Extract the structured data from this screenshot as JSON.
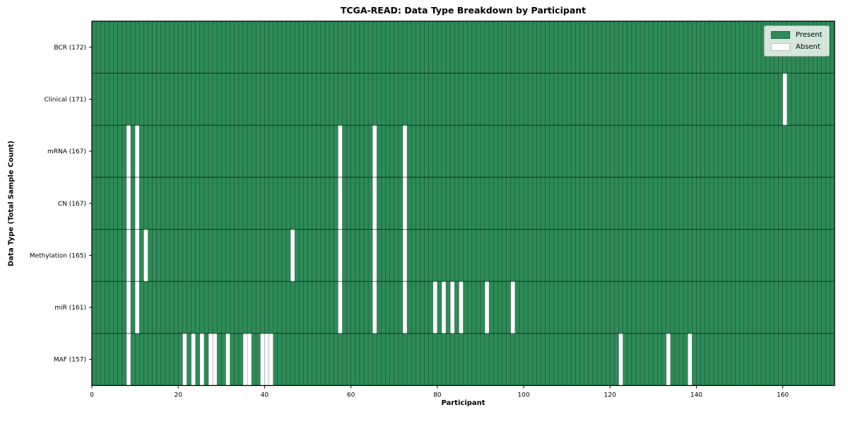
{
  "chart_data": {
    "type": "heatmap",
    "title": "TCGA-READ: Data Type Breakdown by Participant",
    "xlabel": "Participant",
    "ylabel": "Data Type (Total Sample Count)",
    "x_ticks": [
      0,
      20,
      40,
      60,
      80,
      100,
      120,
      140,
      160
    ],
    "x_range": [
      0,
      172
    ],
    "n_participants": 172,
    "grid": true,
    "legend_position": "upper right",
    "rows": [
      {
        "label": "BCR (172)",
        "total_samples": 172,
        "absent_participants": []
      },
      {
        "label": "Clinical (171)",
        "total_samples": 171,
        "absent_participants": [
          160
        ]
      },
      {
        "label": "mRNA (167)",
        "total_samples": 167,
        "absent_participants": [
          8,
          10,
          57,
          65,
          72
        ]
      },
      {
        "label": "CN (167)",
        "total_samples": 167,
        "absent_participants": [
          8,
          10,
          57,
          65,
          72
        ]
      },
      {
        "label": "Methylation (165)",
        "total_samples": 165,
        "absent_participants": [
          8,
          10,
          12,
          46,
          57,
          65,
          72
        ]
      },
      {
        "label": "miR (161)",
        "total_samples": 161,
        "absent_participants": [
          8,
          10,
          57,
          65,
          72,
          79,
          81,
          83,
          85,
          91,
          97
        ]
      },
      {
        "label": "MAF (157)",
        "total_samples": 157,
        "absent_participants": [
          8,
          21,
          23,
          25,
          27,
          28,
          31,
          35,
          36,
          39,
          40,
          41,
          122,
          133,
          138
        ]
      }
    ],
    "legend": [
      {
        "label": "Present",
        "color": "#2e8b57"
      },
      {
        "label": "Absent",
        "color": "#ffffff"
      }
    ],
    "colors": {
      "present": "#2e8b57",
      "absent": "#ffffff",
      "gridline": "#000000",
      "row_divider": "#000000",
      "plot_border": "#000000",
      "background": "#ffffff",
      "legend_face": "rgba(255,255,255,0.8)"
    }
  }
}
